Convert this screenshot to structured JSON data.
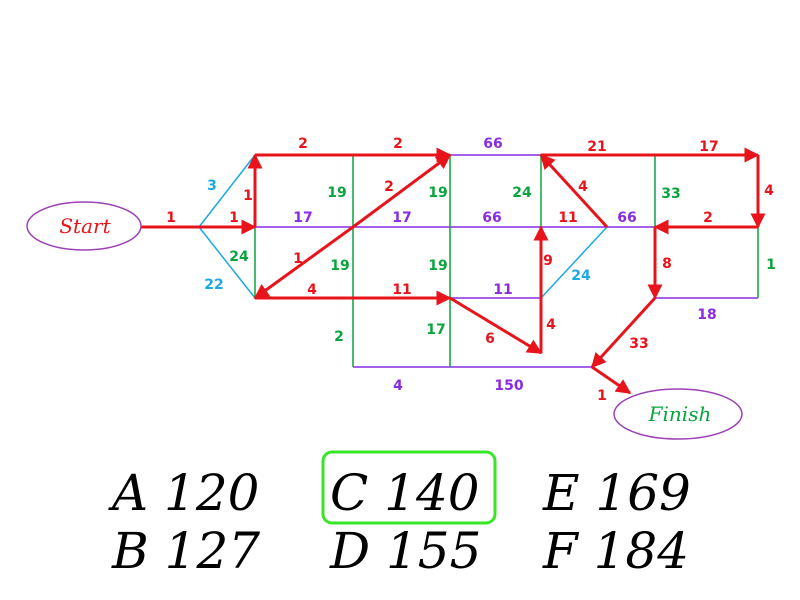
{
  "colors": {
    "red": "#e8141b",
    "purple": "#8a2be2",
    "green": "#0aa43c",
    "blue": "#1aa9e0",
    "highlight": "#37e629",
    "start_text": "#e8141b",
    "finish_text": "#0aa43c",
    "oval_stroke": "#9c42b5"
  },
  "nodes": {
    "start": "Start",
    "finish": "Finish"
  },
  "weights": {
    "start_edge": "1",
    "top_1": "2",
    "top_2": "2",
    "top_3": "66",
    "top_4": "21",
    "top_5": "17",
    "left_up_diag": "3",
    "left_down_diag": "22",
    "left_up_vert": "1",
    "left_mid": "1",
    "mid_1": "17",
    "mid_2": "17",
    "mid_3": "66",
    "mid_4": "11",
    "mid_5": "66",
    "mid_6": "2",
    "upper_v_2": "19",
    "upper_v_3": "19",
    "upper_v_4": "24",
    "upper_v_5": "33",
    "right_v_down": "4",
    "diag_up": "2",
    "diag_down": "1",
    "diag_back": "4",
    "left_down_vert": "24",
    "lower_v_2": "19",
    "lower_v_3": "19",
    "lower_v_4": "9",
    "lower_diag_blue": "24",
    "right_lower_vert": "1",
    "red_down_right": "8",
    "lower_1": "4",
    "lower_2": "11",
    "lower_3": "11",
    "lower_right": "18",
    "bottom_v_1": "2",
    "bottom_v_2": "17",
    "bottom_diag": "6",
    "bottom_v_up": "4",
    "bottom_1": "4",
    "bottom_2": "150",
    "to_finish_diag": "33",
    "finish_edge": "1"
  },
  "answers": {
    "a": "A 120",
    "b": "B 127",
    "c": "C 140",
    "d": "D 155",
    "e": "E 169",
    "f": "F 184"
  }
}
